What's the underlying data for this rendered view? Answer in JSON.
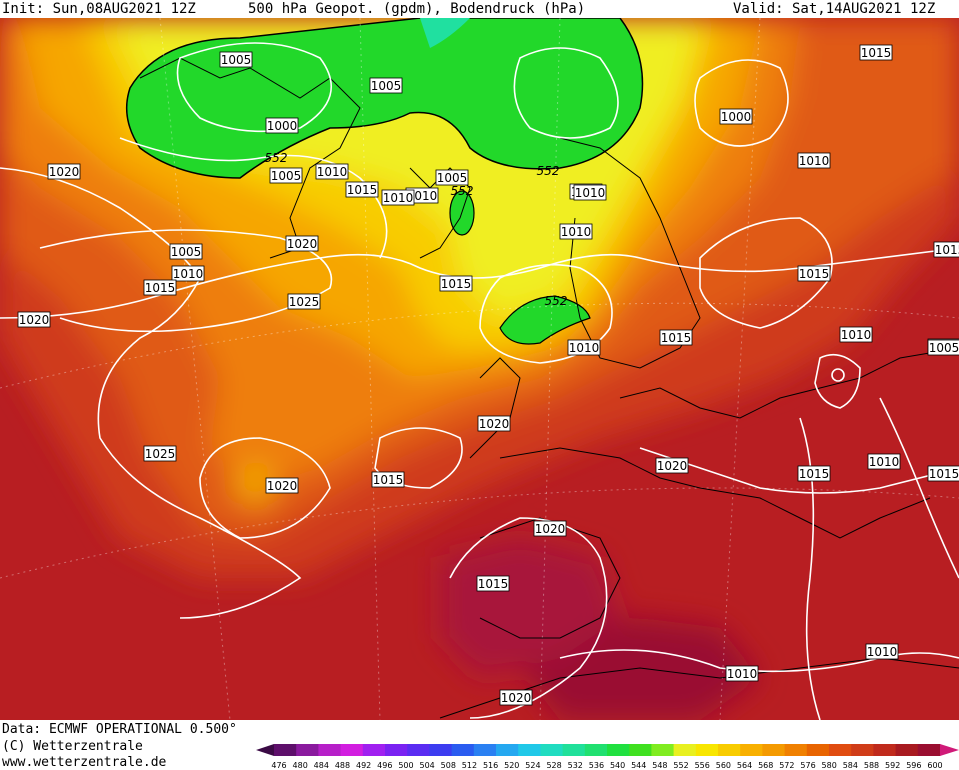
{
  "header": {
    "init": "Init: Sun,08AUG2021 12Z",
    "title": "500 hPa Geopot. (gpdm), Bodendruck (hPa)",
    "valid": "Valid: Sat,14AUG2021 12Z"
  },
  "footer": {
    "data_line": "Data: ECMWF OPERATIONAL 0.500°",
    "copyright": "(C) Wetterzentrale",
    "url": "www.wetterzentrale.de"
  },
  "colorbar": {
    "ticks": [
      "476",
      "480",
      "484",
      "488",
      "492",
      "496",
      "500",
      "504",
      "508",
      "512",
      "516",
      "520",
      "524",
      "528",
      "532",
      "536",
      "540",
      "544",
      "548",
      "552",
      "556",
      "560",
      "564",
      "568",
      "572",
      "576",
      "580",
      "584",
      "588",
      "592",
      "596",
      "600"
    ],
    "colors": [
      "#3b0a45",
      "#5e0f6b",
      "#8a1a9e",
      "#b61fc8",
      "#d21ee0",
      "#a020f0",
      "#7a22f2",
      "#5a2cf2",
      "#3c3cf0",
      "#2a5cf0",
      "#2a80f2",
      "#25a8f0",
      "#20c8e8",
      "#20dcc0",
      "#20e09a",
      "#20e070",
      "#20e040",
      "#40e020",
      "#80ec20",
      "#e8f020",
      "#f8e600",
      "#f8cc00",
      "#f8b000",
      "#f49a00",
      "#f08000",
      "#e86400",
      "#e04c10",
      "#d03c18",
      "#c02a1c",
      "#a81a20",
      "#9a0e30",
      "#d01a78"
    ]
  },
  "map_labels": {
    "isobars": [
      "1005",
      "1005",
      "1000",
      "1005",
      "1010",
      "1015",
      "1020",
      "1005",
      "1010",
      "1015",
      "1020",
      "1025",
      "1020",
      "1025",
      "1020",
      "1015",
      "1020",
      "1015",
      "1010",
      "1005",
      "1010",
      "1010",
      "1015",
      "1010",
      "1000",
      "1015",
      "1010",
      "1015",
      "1010",
      "1005",
      "1010",
      "1015",
      "1020",
      "1020",
      "1015",
      "1015",
      "1020",
      "1015",
      "1010",
      "1010",
      "1015",
      "1005",
      "1010",
      "1010"
    ],
    "geopot": [
      "552",
      "552",
      "552",
      "552"
    ]
  }
}
